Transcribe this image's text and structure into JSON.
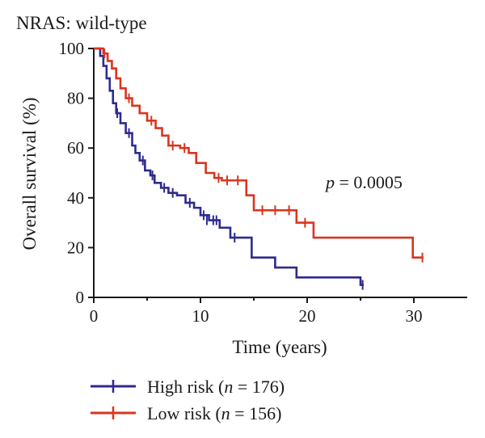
{
  "chart_data": {
    "type": "line",
    "title": "NRAS: wild-type",
    "xlabel": "Time (years)",
    "ylabel": "Overall survival (%)",
    "xlim": [
      0,
      35
    ],
    "ylim": [
      0,
      100
    ],
    "xticks": [
      0,
      10,
      20,
      30
    ],
    "yticks": [
      0,
      20,
      40,
      60,
      80,
      100
    ],
    "annotation": {
      "italic": "p",
      "rest": " = 0.0005"
    },
    "legend_position": "bottom-left",
    "series": [
      {
        "name": "High risk (n = 176)",
        "name_parts": {
          "pre": "High risk (",
          "italic": "n",
          "post": " = 176)"
        },
        "color": "#2e2a90",
        "steps": [
          [
            0,
            100
          ],
          [
            0.6,
            97
          ],
          [
            0.9,
            93
          ],
          [
            1.2,
            88
          ],
          [
            1.5,
            83
          ],
          [
            1.8,
            78
          ],
          [
            2.1,
            74
          ],
          [
            2.5,
            70
          ],
          [
            3.0,
            66
          ],
          [
            3.6,
            61
          ],
          [
            3.9,
            58
          ],
          [
            4.3,
            55
          ],
          [
            4.8,
            51
          ],
          [
            5.3,
            49
          ],
          [
            5.7,
            46
          ],
          [
            6.3,
            44
          ],
          [
            7.0,
            42
          ],
          [
            7.8,
            41
          ],
          [
            8.6,
            38
          ],
          [
            9.4,
            36
          ],
          [
            10.0,
            33
          ],
          [
            10.8,
            31
          ],
          [
            11.8,
            28
          ],
          [
            12.8,
            24
          ],
          [
            14.8,
            16
          ],
          [
            17.0,
            12
          ],
          [
            19.0,
            8
          ],
          [
            25.0,
            5
          ]
        ],
        "censor": [
          [
            2.2,
            74
          ],
          [
            3.3,
            66
          ],
          [
            4.6,
            55
          ],
          [
            5.5,
            49
          ],
          [
            6.6,
            44
          ],
          [
            7.4,
            42
          ],
          [
            9.0,
            38
          ],
          [
            10.3,
            33
          ],
          [
            10.6,
            31
          ],
          [
            11.2,
            31
          ],
          [
            11.5,
            31
          ],
          [
            13.2,
            24
          ],
          [
            25.2,
            5
          ]
        ],
        "end_x": 25.3
      },
      {
        "name": "Low risk (n = 156)",
        "name_parts": {
          "pre": "Low risk (",
          "italic": "n",
          "post": " = 156)"
        },
        "color": "#d9351f",
        "steps": [
          [
            0,
            100
          ],
          [
            0.9,
            98
          ],
          [
            1.3,
            95
          ],
          [
            1.7,
            92
          ],
          [
            2.1,
            88
          ],
          [
            2.5,
            84
          ],
          [
            3.0,
            80
          ],
          [
            3.6,
            77
          ],
          [
            4.3,
            74
          ],
          [
            5.0,
            71
          ],
          [
            5.8,
            68
          ],
          [
            6.4,
            65
          ],
          [
            7.0,
            61
          ],
          [
            8.1,
            60
          ],
          [
            8.9,
            58
          ],
          [
            9.6,
            54
          ],
          [
            10.5,
            50
          ],
          [
            11.3,
            48
          ],
          [
            12.0,
            47
          ],
          [
            14.3,
            41
          ],
          [
            15.0,
            35
          ],
          [
            19.0,
            30
          ],
          [
            20.6,
            24
          ],
          [
            29.9,
            16
          ]
        ],
        "censor": [
          [
            1.0,
            98
          ],
          [
            3.3,
            80
          ],
          [
            5.4,
            71
          ],
          [
            7.4,
            61
          ],
          [
            8.5,
            60
          ],
          [
            11.7,
            48
          ],
          [
            12.5,
            47
          ],
          [
            13.5,
            47
          ],
          [
            15.8,
            35
          ],
          [
            17.0,
            35
          ],
          [
            18.3,
            35
          ],
          [
            19.8,
            30
          ],
          [
            30.8,
            16
          ]
        ],
        "end_x": 30.9
      }
    ]
  }
}
